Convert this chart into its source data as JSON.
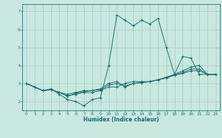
{
  "title": "",
  "xlabel": "Humidex (Indice chaleur)",
  "xlim": [
    -0.5,
    23.5
  ],
  "ylim": [
    1.5,
    7.4
  ],
  "yticks": [
    2,
    3,
    4,
    5,
    6,
    7
  ],
  "xticks": [
    0,
    1,
    2,
    3,
    4,
    5,
    6,
    7,
    8,
    9,
    10,
    11,
    12,
    13,
    14,
    15,
    16,
    17,
    18,
    19,
    20,
    21,
    22,
    23
  ],
  "bg_color": "#c8e8e0",
  "line_color": "#1a6b6b",
  "grid_color": "#a0c8c0",
  "series": [
    [
      3.0,
      2.8,
      2.6,
      2.7,
      2.4,
      2.1,
      2.0,
      1.75,
      2.1,
      2.2,
      4.0,
      6.8,
      6.5,
      6.2,
      6.5,
      6.3,
      6.6,
      5.0,
      3.5,
      4.5,
      4.4,
      3.5,
      3.5,
      3.5
    ],
    [
      3.0,
      2.8,
      2.6,
      2.65,
      2.5,
      2.3,
      2.4,
      2.5,
      2.5,
      2.6,
      2.8,
      2.8,
      3.0,
      3.1,
      3.1,
      3.1,
      3.2,
      3.3,
      3.5,
      3.6,
      3.8,
      3.8,
      3.5,
      3.5
    ],
    [
      3.0,
      2.8,
      2.6,
      2.65,
      2.5,
      2.4,
      2.5,
      2.6,
      2.6,
      2.7,
      3.0,
      3.1,
      2.8,
      3.0,
      3.05,
      3.1,
      3.2,
      3.35,
      3.5,
      3.7,
      3.9,
      4.0,
      3.5,
      3.5
    ],
    [
      3.0,
      2.8,
      2.6,
      2.65,
      2.5,
      2.3,
      2.45,
      2.55,
      2.6,
      2.65,
      2.9,
      3.0,
      2.85,
      3.0,
      3.05,
      3.1,
      3.2,
      3.3,
      3.45,
      3.55,
      3.7,
      3.7,
      3.5,
      3.5
    ]
  ],
  "figsize": [
    3.2,
    2.0
  ],
  "dpi": 100
}
